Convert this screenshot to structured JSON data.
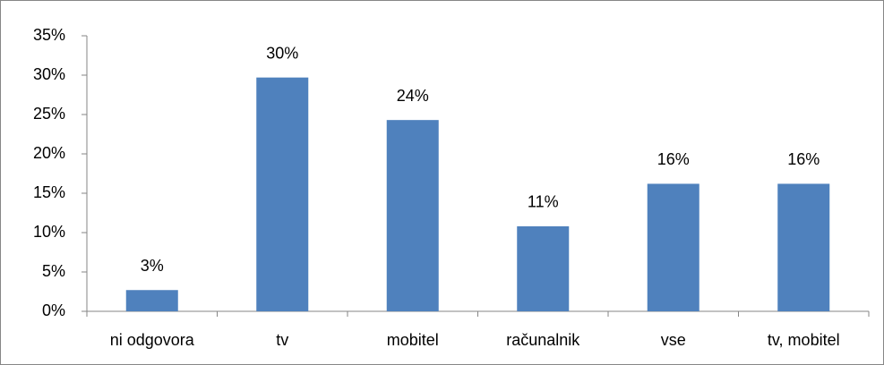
{
  "chart_data": {
    "type": "bar",
    "categories": [
      "ni odgovora",
      "tv",
      "mobitel",
      "računalnik",
      "vse",
      "tv, mobitel"
    ],
    "values": [
      2.7,
      29.7,
      24.3,
      10.8,
      16.2,
      16.2
    ],
    "value_labels": [
      "3%",
      "30%",
      "24%",
      "11%",
      "16%",
      "16%"
    ],
    "color": "#4f81bd",
    "ylim": [
      0,
      35
    ],
    "yticks": [
      {
        "value": 0,
        "label": "0%"
      },
      {
        "value": 5,
        "label": "5%"
      },
      {
        "value": 10,
        "label": "10%"
      },
      {
        "value": 15,
        "label": "15%"
      },
      {
        "value": 20,
        "label": "20%"
      },
      {
        "value": 25,
        "label": "25%"
      },
      {
        "value": 30,
        "label": "30%"
      },
      {
        "value": 35,
        "label": "35%"
      }
    ],
    "grid": false
  }
}
